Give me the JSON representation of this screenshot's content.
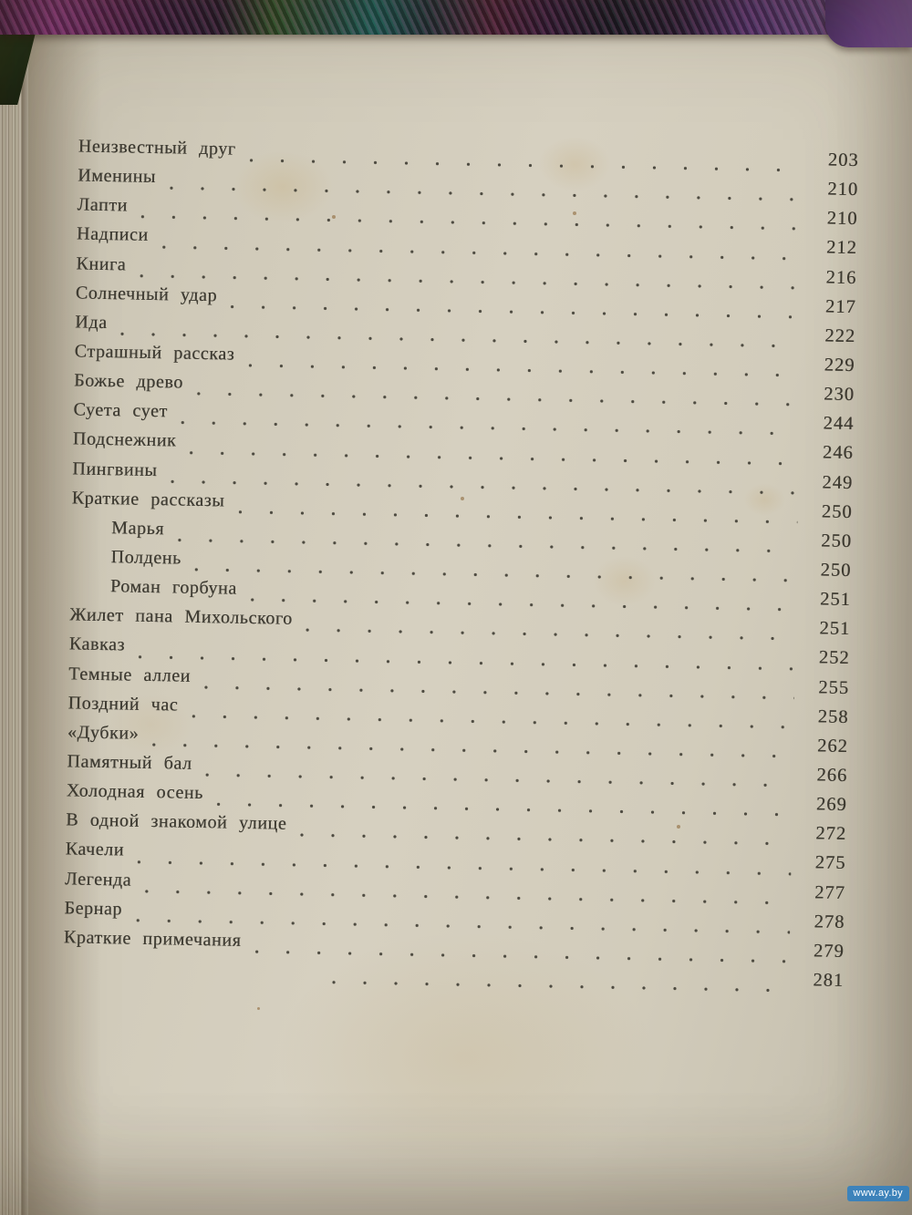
{
  "toc": {
    "entries": [
      {
        "title": "Неизвестный друг",
        "page": "203",
        "indent": 0
      },
      {
        "title": "Именины",
        "page": "210",
        "indent": 0
      },
      {
        "title": "Лапти",
        "page": "210",
        "indent": 0
      },
      {
        "title": "Надписи",
        "page": "212",
        "indent": 0
      },
      {
        "title": "Книга",
        "page": "216",
        "indent": 0
      },
      {
        "title": "Солнечный удар",
        "page": "217",
        "indent": 0
      },
      {
        "title": "Ида",
        "page": "222",
        "indent": 0
      },
      {
        "title": "Страшный рассказ",
        "page": "229",
        "indent": 0
      },
      {
        "title": "Божье древо",
        "page": "230",
        "indent": 0
      },
      {
        "title": "Суета сует",
        "page": "244",
        "indent": 0
      },
      {
        "title": "Подснежник",
        "page": "246",
        "indent": 0
      },
      {
        "title": "Пингвины",
        "page": "249",
        "indent": 0
      },
      {
        "title": "Краткие рассказы",
        "page": "250",
        "indent": 0
      },
      {
        "title": "Марья",
        "page": "250",
        "indent": 1
      },
      {
        "title": "Полдень",
        "page": "250",
        "indent": 1
      },
      {
        "title": "Роман горбуна",
        "page": "251",
        "indent": 1
      },
      {
        "title": "Жилет пана Михольского",
        "page": "251",
        "indent": 0
      },
      {
        "title": "Кавказ",
        "page": "252",
        "indent": 0
      },
      {
        "title": "Темные аллеи",
        "page": "255",
        "indent": 0
      },
      {
        "title": "Поздний час",
        "page": "258",
        "indent": 0
      },
      {
        "title": "«Дубки»",
        "page": "262",
        "indent": 0
      },
      {
        "title": "Памятный бал",
        "page": "266",
        "indent": 0
      },
      {
        "title": "Холодная осень",
        "page": "269",
        "indent": 0
      },
      {
        "title": "В одной знакомой улице",
        "page": "272",
        "indent": 0
      },
      {
        "title": "Качели",
        "page": "275",
        "indent": 0
      },
      {
        "title": "Легенда",
        "page": "277",
        "indent": 0
      },
      {
        "title": "Бернар",
        "page": "278",
        "indent": 0
      },
      {
        "title": "Краткие примечания",
        "page": "279",
        "indent": 0
      },
      {
        "title": "",
        "page": "281",
        "indent": 2
      }
    ]
  },
  "watermark": {
    "label": "www.ay.by"
  },
  "colors": {
    "paper": "#d3cdbc",
    "ink": "#3f3c33",
    "fabric_purple": "#6b4388",
    "fabric_magenta": "#7b2f6e",
    "fabric_green": "#33512a",
    "fabric_teal": "#1c5f5a",
    "watermark_blue": "#2f7fc1"
  }
}
